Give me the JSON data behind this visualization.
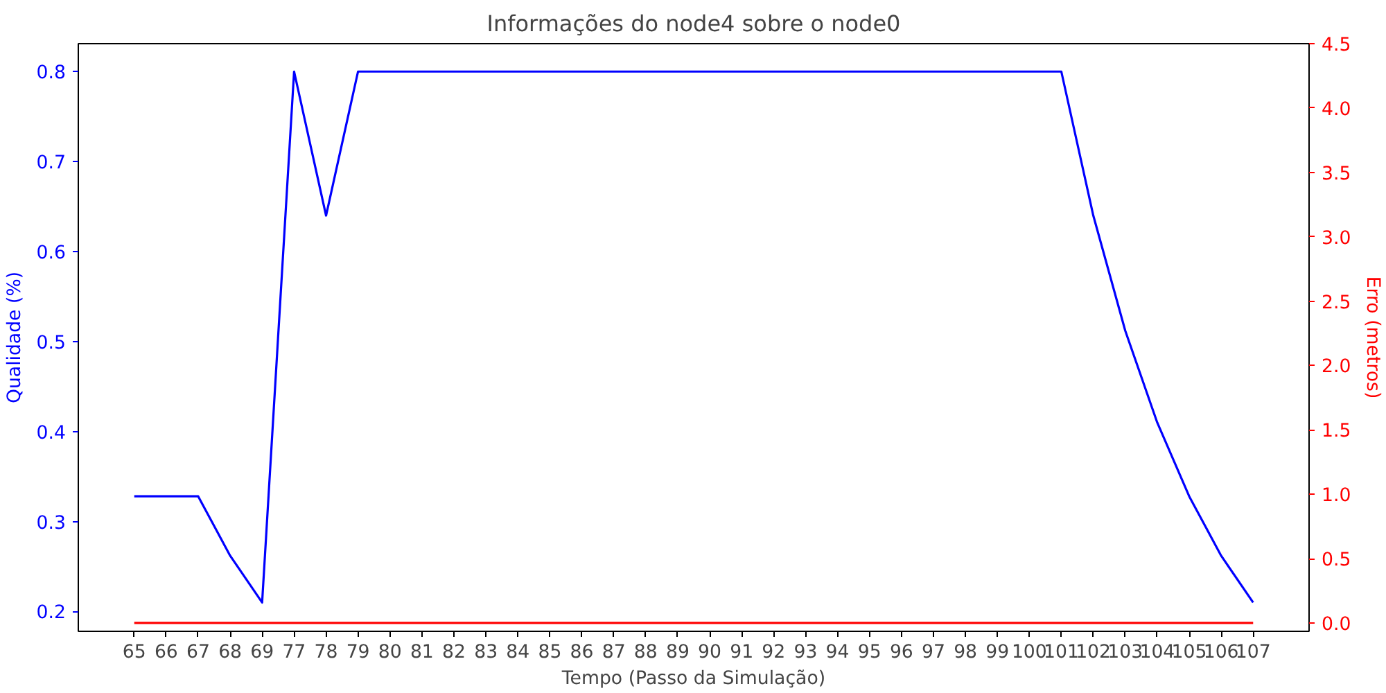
{
  "chart_data": {
    "type": "line",
    "title": "Informações do node4 sobre o node0",
    "xlabel": "Tempo (Passo da Simulação)",
    "ylabel": "Qualidade (%)",
    "y2label": "Erro (metros)",
    "categories": [
      "65",
      "66",
      "67",
      "68",
      "69",
      "77",
      "78",
      "79",
      "80",
      "81",
      "82",
      "83",
      "84",
      "85",
      "86",
      "87",
      "88",
      "89",
      "90",
      "91",
      "92",
      "93",
      "94",
      "95",
      "96",
      "97",
      "98",
      "99",
      "100",
      "101",
      "102",
      "103",
      "104",
      "105",
      "106",
      "107"
    ],
    "series": [
      {
        "color": "#0000ff",
        "values": [
          0.328,
          0.328,
          0.328,
          0.262,
          0.21,
          0.8,
          0.64,
          0.8,
          0.8,
          0.8,
          0.8,
          0.8,
          0.8,
          0.8,
          0.8,
          0.8,
          0.8,
          0.8,
          0.8,
          0.8,
          0.8,
          0.8,
          0.8,
          0.8,
          0.8,
          0.8,
          0.8,
          0.8,
          0.8,
          0.8,
          0.64,
          0.512,
          0.41,
          0.328,
          0.262,
          0.21
        ]
      },
      {
        "color": "#ff0000",
        "axis": "y2",
        "values": [
          0,
          0,
          0,
          0,
          0,
          0,
          0,
          0,
          0,
          0,
          0,
          0,
          0,
          0,
          0,
          0,
          0,
          0,
          0,
          0,
          0,
          0,
          0,
          0,
          0,
          0,
          0,
          0,
          0,
          0,
          0,
          0,
          0,
          0,
          0,
          0
        ]
      }
    ],
    "ylim": [
      0.178,
      0.831
    ],
    "yticks": [
      0.2,
      0.3,
      0.4,
      0.5,
      0.6,
      0.7,
      0.8
    ],
    "y2lim": [
      -0.065,
      4.5
    ],
    "y2ticks": [
      {
        "value": 0,
        "label": "0.0"
      },
      0.5,
      {
        "value": 1,
        "label": "1.0"
      },
      1.5,
      {
        "value": 2,
        "label": "2.0"
      },
      2.5,
      {
        "value": 3,
        "label": "3.0"
      },
      3.5,
      {
        "value": 4,
        "label": "4.0"
      },
      4.5
    ],
    "grid": false
  }
}
